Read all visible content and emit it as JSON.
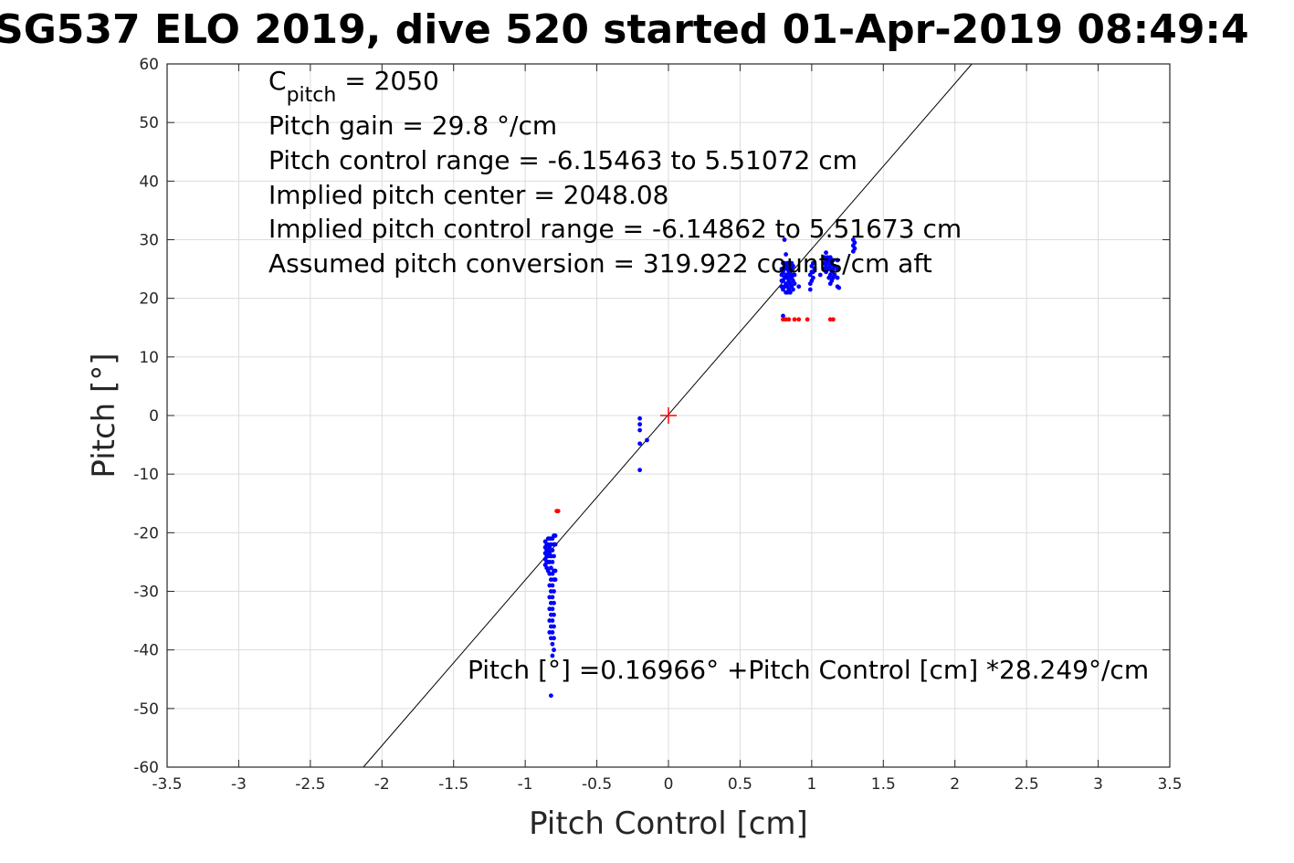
{
  "chart_data": {
    "type": "scatter",
    "title": "SG537 ELO 2019, dive 520 started 01-Apr-2019 08:49:4",
    "xlabel": "Pitch Control [cm]",
    "ylabel": "Pitch [°]",
    "xlim": [
      -3.5,
      3.5
    ],
    "ylim": [
      -60,
      60
    ],
    "xticks": [
      "-3.5",
      "-3",
      "-2.5",
      "-2",
      "-1.5",
      "-1",
      "-0.5",
      "0",
      "0.5",
      "1",
      "1.5",
      "2",
      "2.5",
      "3",
      "3.5"
    ],
    "yticks": [
      "60",
      "50",
      "40",
      "30",
      "20",
      "10",
      "0",
      "-10",
      "-20",
      "-30",
      "-40",
      "-50",
      "-60"
    ],
    "grid": true,
    "annotations": {
      "cpitch_base": "C",
      "cpitch_sub": "pitch",
      "cpitch_value": " = 2050",
      "pitch_gain": "Pitch gain = 29.8 °/cm",
      "pitch_control_range": "Pitch control range = -6.15463 to 5.51072 cm",
      "implied_center": "Implied pitch center = 2048.08",
      "implied_range": "Implied pitch control range = -6.14862 to 5.51673 cm",
      "conversion": "Assumed pitch conversion = 319.922 counts/cm aft",
      "fit_equation": "Pitch [°] =0.16966° +Pitch Control [cm] *28.249°/cm"
    },
    "fit_line": {
      "intercept": 0.16966,
      "slope": 28.249,
      "color": "#000000"
    },
    "center_marker": {
      "x": 0,
      "y": 0,
      "color": "#ff0000"
    },
    "series": [
      {
        "color": "#0000ff",
        "points": [
          [
            -0.86,
            -21.5
          ],
          [
            -0.86,
            -22.5
          ],
          [
            -0.86,
            -23.5
          ],
          [
            -0.86,
            -24.5
          ],
          [
            -0.86,
            -25.5
          ],
          [
            -0.85,
            -22
          ],
          [
            -0.85,
            -23
          ],
          [
            -0.85,
            -24
          ],
          [
            -0.85,
            -25
          ],
          [
            -0.85,
            -26
          ],
          [
            -0.84,
            -21
          ],
          [
            -0.84,
            -22
          ],
          [
            -0.84,
            -23
          ],
          [
            -0.84,
            -24
          ],
          [
            -0.84,
            -25
          ],
          [
            -0.84,
            -26.5
          ],
          [
            -0.83,
            -21
          ],
          [
            -0.83,
            -22.5
          ],
          [
            -0.83,
            -23.5
          ],
          [
            -0.83,
            -25
          ],
          [
            -0.83,
            -27
          ],
          [
            -0.83,
            -29
          ],
          [
            -0.83,
            -31
          ],
          [
            -0.83,
            -33
          ],
          [
            -0.83,
            -35
          ],
          [
            -0.83,
            -37
          ],
          [
            -0.82,
            -21
          ],
          [
            -0.82,
            -22
          ],
          [
            -0.82,
            -24
          ],
          [
            -0.82,
            -26
          ],
          [
            -0.82,
            -28
          ],
          [
            -0.82,
            -30
          ],
          [
            -0.82,
            -32
          ],
          [
            -0.82,
            -34
          ],
          [
            -0.82,
            -36
          ],
          [
            -0.82,
            -38
          ],
          [
            -0.81,
            -21
          ],
          [
            -0.81,
            -23
          ],
          [
            -0.81,
            -25
          ],
          [
            -0.81,
            -27
          ],
          [
            -0.81,
            -29
          ],
          [
            -0.81,
            -31
          ],
          [
            -0.81,
            -33
          ],
          [
            -0.81,
            -35
          ],
          [
            -0.81,
            -37
          ],
          [
            -0.81,
            -39
          ],
          [
            -0.81,
            -41
          ],
          [
            -0.8,
            -20.5
          ],
          [
            -0.8,
            -22
          ],
          [
            -0.8,
            -24
          ],
          [
            -0.8,
            -26.5
          ],
          [
            -0.8,
            -28
          ],
          [
            -0.8,
            -30
          ],
          [
            -0.8,
            -32
          ],
          [
            -0.8,
            -34
          ],
          [
            -0.8,
            -36
          ],
          [
            -0.8,
            -38
          ],
          [
            -0.8,
            -40
          ],
          [
            -0.79,
            -20.5
          ],
          [
            -0.79,
            -22
          ],
          [
            -0.79,
            -26.5
          ],
          [
            -0.79,
            -28
          ],
          [
            -0.82,
            -47.8
          ],
          [
            -0.2,
            -0.5
          ],
          [
            -0.2,
            -1.5
          ],
          [
            -0.2,
            -2.5
          ],
          [
            -0.2,
            -4.8
          ],
          [
            -0.2,
            -9.3
          ],
          [
            -0.15,
            -4.2
          ],
          [
            0.79,
            22
          ],
          [
            0.79,
            23
          ],
          [
            0.79,
            24
          ],
          [
            0.79,
            25
          ],
          [
            0.8,
            21.5
          ],
          [
            0.8,
            23
          ],
          [
            0.8,
            24.5
          ],
          [
            0.8,
            26
          ],
          [
            0.8,
            17
          ],
          [
            0.81,
            22
          ],
          [
            0.81,
            23.5
          ],
          [
            0.81,
            25
          ],
          [
            0.81,
            26
          ],
          [
            0.81,
            30
          ],
          [
            0.82,
            21
          ],
          [
            0.82,
            22.5
          ],
          [
            0.82,
            24
          ],
          [
            0.82,
            25.5
          ],
          [
            0.82,
            27.5
          ],
          [
            0.83,
            21
          ],
          [
            0.83,
            22
          ],
          [
            0.83,
            23.5
          ],
          [
            0.83,
            25
          ],
          [
            0.83,
            26
          ],
          [
            0.84,
            21.5
          ],
          [
            0.84,
            23
          ],
          [
            0.84,
            24.5
          ],
          [
            0.84,
            26
          ],
          [
            0.85,
            21
          ],
          [
            0.85,
            22.5
          ],
          [
            0.85,
            24
          ],
          [
            0.85,
            25.5
          ],
          [
            0.86,
            22
          ],
          [
            0.86,
            23.5
          ],
          [
            0.86,
            25
          ],
          [
            0.86,
            26
          ],
          [
            0.87,
            21.5
          ],
          [
            0.87,
            23
          ],
          [
            0.87,
            24
          ],
          [
            0.87,
            25.5
          ],
          [
            0.88,
            22.5
          ],
          [
            0.88,
            24
          ],
          [
            0.91,
            22
          ],
          [
            0.99,
            21.5
          ],
          [
            0.99,
            22.5
          ],
          [
            0.99,
            24
          ],
          [
            1.0,
            23
          ],
          [
            1.0,
            24.5
          ],
          [
            1.0,
            25.5
          ],
          [
            1.01,
            23.5
          ],
          [
            1.01,
            24.5
          ],
          [
            1.01,
            26
          ],
          [
            1.02,
            25
          ],
          [
            1.06,
            24
          ],
          [
            1.09,
            25
          ],
          [
            1.09,
            26
          ],
          [
            1.09,
            27
          ],
          [
            1.1,
            24.5
          ],
          [
            1.1,
            25.5
          ],
          [
            1.1,
            26.5
          ],
          [
            1.1,
            27.8
          ],
          [
            1.11,
            25
          ],
          [
            1.11,
            26
          ],
          [
            1.11,
            27
          ],
          [
            1.12,
            23.5
          ],
          [
            1.12,
            25
          ],
          [
            1.12,
            26.5
          ],
          [
            1.13,
            22.5
          ],
          [
            1.13,
            24
          ],
          [
            1.13,
            25.5
          ],
          [
            1.13,
            27
          ],
          [
            1.14,
            23
          ],
          [
            1.14,
            24.5
          ],
          [
            1.14,
            26
          ],
          [
            1.15,
            23.5
          ],
          [
            1.15,
            25
          ],
          [
            1.15,
            26.5
          ],
          [
            1.16,
            24
          ],
          [
            1.16,
            25.5
          ],
          [
            1.18,
            22
          ],
          [
            1.18,
            23.5
          ],
          [
            1.18,
            25
          ],
          [
            1.18,
            26.5
          ],
          [
            1.19,
            21.8
          ],
          [
            1.29,
            28
          ],
          [
            1.29,
            29
          ],
          [
            1.29,
            30
          ],
          [
            1.3,
            28.5
          ],
          [
            1.3,
            29.5
          ]
        ]
      },
      {
        "color": "#ff0000",
        "points": [
          [
            -0.78,
            -16.3
          ],
          [
            -0.77,
            -16.3
          ],
          [
            0.8,
            16.4
          ],
          [
            0.82,
            16.4
          ],
          [
            0.84,
            16.4
          ],
          [
            0.88,
            16.4
          ],
          [
            0.91,
            16.4
          ],
          [
            0.97,
            16.4
          ],
          [
            1.13,
            16.4
          ],
          [
            1.15,
            16.4
          ]
        ]
      }
    ]
  }
}
